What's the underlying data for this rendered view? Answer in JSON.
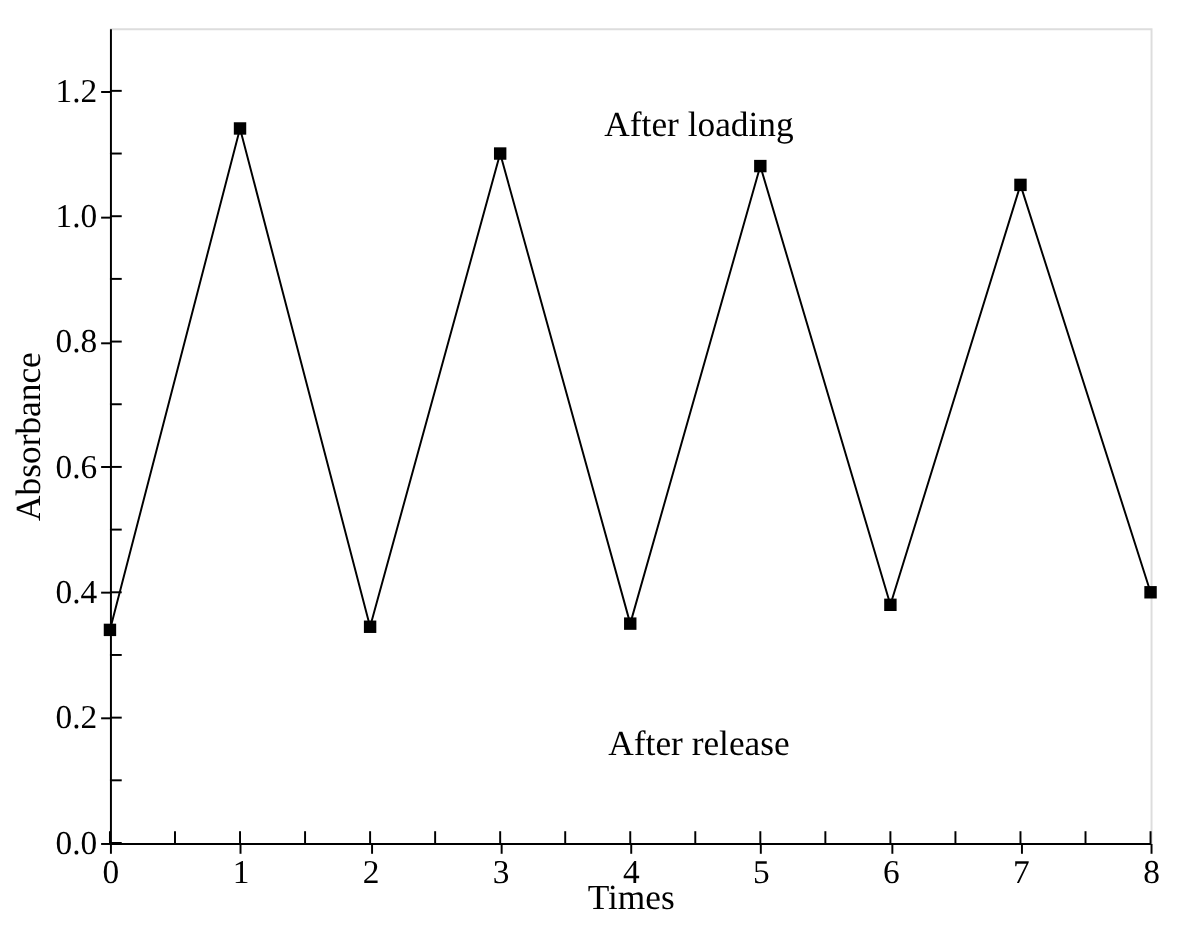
{
  "chart_data": {
    "type": "line",
    "xlabel": "Times",
    "ylabel": "Absorbance",
    "x": [
      0,
      1,
      2,
      3,
      4,
      5,
      6,
      7,
      8
    ],
    "series": [
      {
        "color": "#000000",
        "values": [
          0.34,
          1.14,
          0.345,
          1.1,
          0.35,
          1.08,
          0.38,
          1.05,
          0.4
        ]
      }
    ],
    "xlim": [
      0,
      8
    ],
    "xticks": [
      0,
      {
        "value": 0.5,
        "label": null
      },
      1,
      {
        "value": 1.5,
        "label": null
      },
      2,
      {
        "value": 2.5,
        "label": null
      },
      3,
      {
        "value": 3.5,
        "label": null
      },
      4,
      {
        "value": 4.5,
        "label": null
      },
      5,
      {
        "value": 5.5,
        "label": null
      },
      6,
      {
        "value": 6.5,
        "label": null
      },
      7,
      {
        "value": 7.5,
        "label": null
      },
      8
    ],
    "ylim": [
      0,
      1.3
    ],
    "yticks": [
      {
        "value": 0,
        "label": "0.0"
      },
      {
        "value": 0.1,
        "label": null
      },
      0.2,
      {
        "value": 0.3,
        "label": null
      },
      0.4,
      {
        "value": 0.5,
        "label": null
      },
      0.6,
      {
        "value": 0.7,
        "label": null
      },
      0.8,
      {
        "value": 0.9,
        "label": null
      },
      {
        "value": 1.0,
        "label": "1.0"
      },
      {
        "value": 1.1,
        "label": null
      },
      1.2
    ],
    "annotations": [
      "After loading",
      "After release"
    ],
    "marker": "square",
    "line_style": "solid",
    "grid": false
  }
}
